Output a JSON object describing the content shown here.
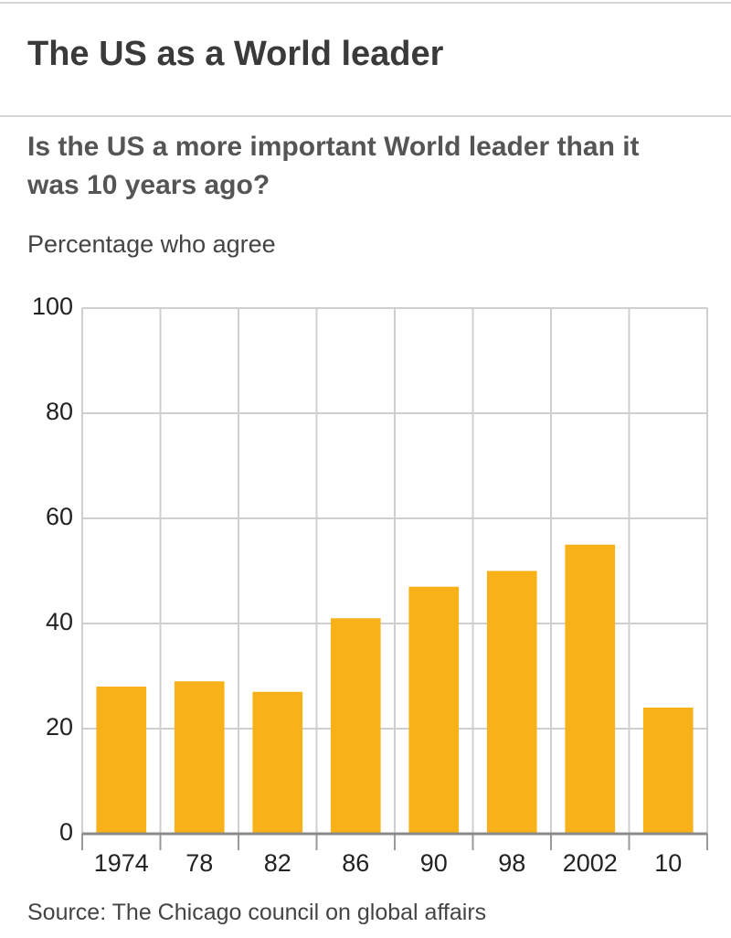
{
  "chart_data": {
    "type": "bar",
    "title": "The US as a World leader",
    "subtitle": "Is the US a more important World leader than it was 10 years ago?",
    "y_label": "Percentage who agree",
    "source": "Source: The Chicago council on global affairs",
    "categories": [
      "1974",
      "78",
      "82",
      "86",
      "90",
      "98",
      "2002",
      "10"
    ],
    "values": [
      28,
      29,
      27,
      41,
      47,
      50,
      55,
      24
    ],
    "color": "#f9b11a",
    "ylim": [
      0,
      100
    ],
    "yticks": [
      0,
      20,
      40,
      60,
      80,
      100
    ],
    "grid": true
  }
}
